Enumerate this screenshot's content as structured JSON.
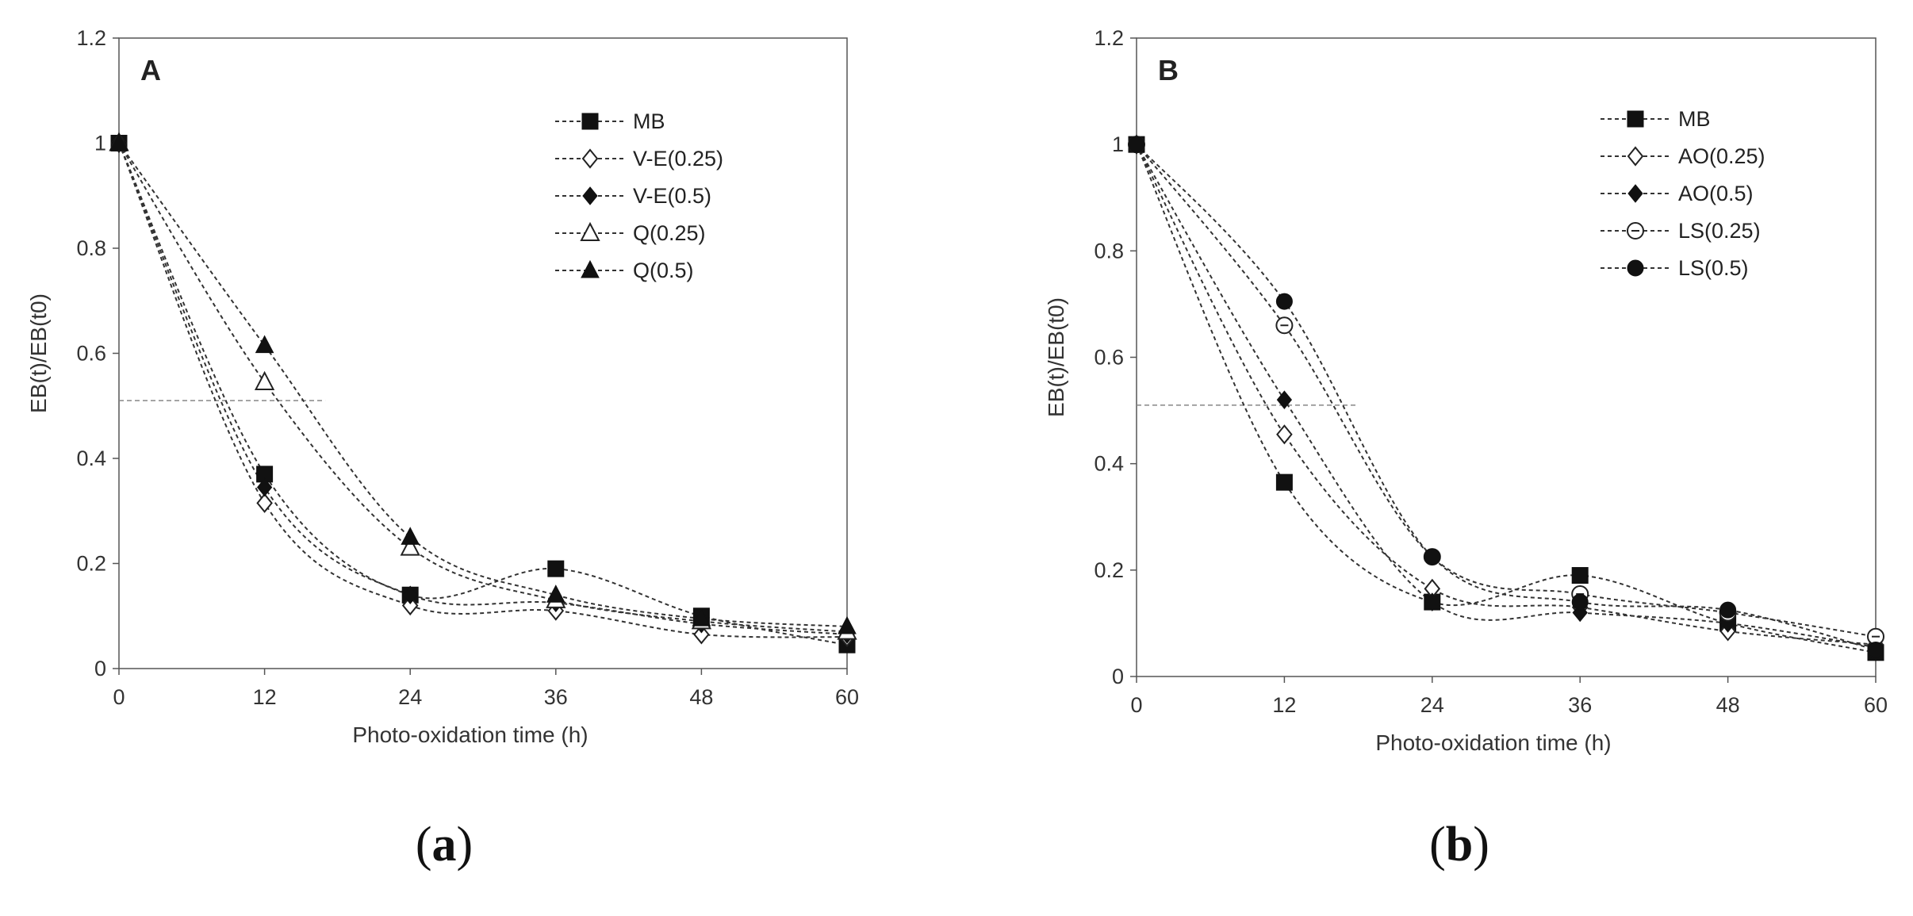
{
  "chart_data": [
    {
      "type": "line",
      "panel_label": "A",
      "caption_open": "(",
      "caption_letter": "a",
      "caption_close": ")",
      "xlabel": "Photo-oxidation time (h)",
      "ylabel": "EB(t)/EB(t0)",
      "xlim": [
        0,
        60
      ],
      "ylim": [
        0,
        1.2
      ],
      "x_ticks": [
        "0",
        "12",
        "24",
        "36",
        "48",
        "60"
      ],
      "y_ticks": [
        "0",
        "0.2",
        "0.4",
        "0.6",
        "0.8",
        "1",
        "1.2"
      ],
      "x": [
        0,
        12,
        24,
        36,
        48,
        60
      ],
      "reference_line": {
        "y": 0.51,
        "x_end": 17
      },
      "legend_position": "top-right",
      "series": [
        {
          "name": "MB",
          "marker": "square-filled",
          "values": [
            1,
            0.37,
            0.14,
            0.19,
            0.1,
            0.045
          ]
        },
        {
          "name": "V-E(0.25)",
          "marker": "diamond-open",
          "values": [
            1,
            0.315,
            0.12,
            0.11,
            0.065,
            0.06
          ]
        },
        {
          "name": "V-E(0.5)",
          "marker": "diamond-filled",
          "values": [
            1,
            0.345,
            0.14,
            0.125,
            0.085,
            0.065
          ]
        },
        {
          "name": "Q(0.25)",
          "marker": "triangle-open",
          "values": [
            1,
            0.545,
            0.23,
            0.13,
            0.09,
            0.07
          ]
        },
        {
          "name": "Q(0.5)",
          "marker": "triangle-filled",
          "values": [
            1,
            0.615,
            0.25,
            0.14,
            0.095,
            0.08
          ]
        }
      ]
    },
    {
      "type": "line",
      "panel_label": "B",
      "caption_open": "(",
      "caption_letter": "b",
      "caption_close": ")",
      "xlabel": "Photo-oxidation time (h)",
      "ylabel": "EB(t)/EB(t0)",
      "xlim": [
        0,
        60
      ],
      "ylim": [
        0,
        1.2
      ],
      "x_ticks": [
        "0",
        "12",
        "24",
        "36",
        "48",
        "60"
      ],
      "y_ticks": [
        "0",
        "0.2",
        "0.4",
        "0.6",
        "0.8",
        "1",
        "1.2"
      ],
      "x": [
        0,
        12,
        24,
        36,
        48,
        60
      ],
      "reference_line": {
        "y": 0.51,
        "x_end": 18
      },
      "legend_position": "top-right",
      "series": [
        {
          "name": "MB",
          "marker": "square-filled",
          "values": [
            1,
            0.365,
            0.14,
            0.19,
            0.1,
            0.045
          ]
        },
        {
          "name": "AO(0.25)",
          "marker": "diamond-open",
          "values": [
            1,
            0.455,
            0.165,
            0.13,
            0.085,
            0.06
          ]
        },
        {
          "name": "AO(0.5)",
          "marker": "diamond-filled",
          "values": [
            1,
            0.52,
            0.14,
            0.12,
            0.1,
            0.055
          ]
        },
        {
          "name": "LS(0.25)",
          "marker": "circle-dot-open",
          "values": [
            1,
            0.66,
            0.225,
            0.155,
            0.12,
            0.075
          ]
        },
        {
          "name": "LS(0.5)",
          "marker": "circle-filled",
          "values": [
            1,
            0.705,
            0.225,
            0.14,
            0.125,
            0.05
          ]
        }
      ]
    }
  ]
}
